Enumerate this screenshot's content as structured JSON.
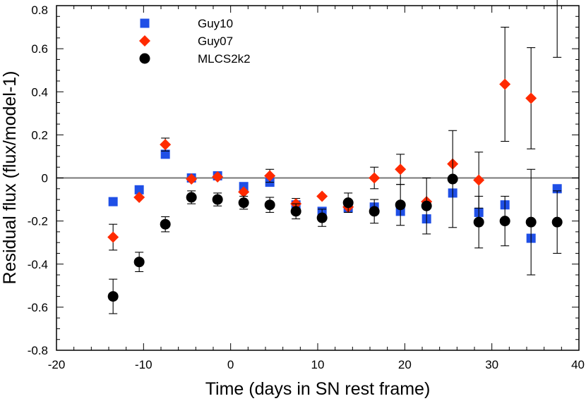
{
  "chart_data": {
    "type": "scatter",
    "title": "",
    "xlabel": "Time (days in SN rest frame)",
    "ylabel": "Residual flux (flux/model-1)",
    "xlim": [
      -20,
      40
    ],
    "ylim": [
      -0.8,
      0.8
    ],
    "xticks": [
      -20,
      -10,
      0,
      10,
      20,
      30,
      40
    ],
    "yticks": [
      -0.8,
      -0.6,
      -0.4,
      -0.2,
      0,
      0.2,
      0.4,
      0.6,
      0.8
    ],
    "xtick_labels": [
      "-20",
      "-10",
      "0",
      "10",
      "20",
      "30",
      "40"
    ],
    "ytick_labels": [
      "-0.8",
      "-0.6",
      "-0.4",
      "-0.2",
      "0",
      "0.2",
      "0.4",
      "0.6",
      "0.8"
    ],
    "reference_line": 0,
    "legend_position": "top-left",
    "series": [
      {
        "name": "Guy10",
        "marker": "square",
        "color": "#1f4fe6",
        "x": [
          -13.5,
          -10.5,
          -7.5,
          -4.5,
          -1.5,
          1.5,
          4.5,
          7.5,
          10.5,
          13.5,
          16.5,
          19.5,
          22.5,
          25.5,
          28.5,
          31.5,
          34.5,
          37.5
        ],
        "y": [
          -0.11,
          -0.055,
          0.11,
          0.0,
          0.01,
          -0.04,
          -0.02,
          -0.125,
          -0.155,
          -0.14,
          -0.135,
          -0.155,
          -0.19,
          -0.07,
          -0.16,
          -0.125,
          -0.28,
          -0.05
        ],
        "err": [
          0.0,
          0.0,
          0.0,
          0.0,
          0.0,
          0.0,
          0.0,
          0.0,
          0.0,
          0.0,
          0.0,
          0.0,
          0.0,
          0.0,
          0.0,
          0.0,
          0.0,
          0.0
        ]
      },
      {
        "name": "Guy07",
        "marker": "diamond",
        "color": "#ff2a00",
        "x": [
          -13.5,
          -10.5,
          -7.5,
          -4.5,
          -1.5,
          1.5,
          4.5,
          7.5,
          10.5,
          13.5,
          16.5,
          19.5,
          22.5,
          25.5,
          28.5,
          31.5,
          34.5
        ],
        "y": [
          -0.275,
          -0.09,
          0.155,
          -0.005,
          0.005,
          -0.065,
          0.01,
          -0.12,
          -0.085,
          -0.135,
          0.0,
          0.04,
          -0.11,
          0.065,
          -0.01,
          0.435,
          0.37
        ],
        "err": [
          0.06,
          0.0,
          0.03,
          0.0,
          0.0,
          0.0,
          0.03,
          0.025,
          0.0,
          0.0,
          0.05,
          0.07,
          0.0,
          0.0,
          0.13,
          0.265,
          0.235
        ]
      },
      {
        "name": "MLCS2k2",
        "marker": "circle",
        "color": "#000000",
        "x": [
          -13.5,
          -10.5,
          -7.5,
          -4.5,
          -1.5,
          1.5,
          4.5,
          7.5,
          10.5,
          13.5,
          16.5,
          19.5,
          22.5,
          25.5,
          28.5,
          31.5,
          34.5,
          37.5,
          37.5
        ],
        "y": [
          -0.55,
          -0.39,
          -0.215,
          -0.09,
          -0.1,
          -0.115,
          -0.125,
          -0.155,
          -0.185,
          -0.115,
          -0.155,
          -0.125,
          -0.13,
          -0.005,
          -0.205,
          -0.2,
          -0.205,
          -0.205,
          0.72
        ],
        "err": [
          0.08,
          0.045,
          0.035,
          0.03,
          0.03,
          0.03,
          0.035,
          0.035,
          0.04,
          0.045,
          0.055,
          0.095,
          0.13,
          0.225,
          0.12,
          0.115,
          0.245,
          0.145,
          0.16
        ],
        "marker_visible": [
          true,
          true,
          true,
          true,
          true,
          true,
          true,
          true,
          true,
          true,
          true,
          true,
          true,
          true,
          true,
          true,
          true,
          true,
          false
        ]
      }
    ]
  }
}
